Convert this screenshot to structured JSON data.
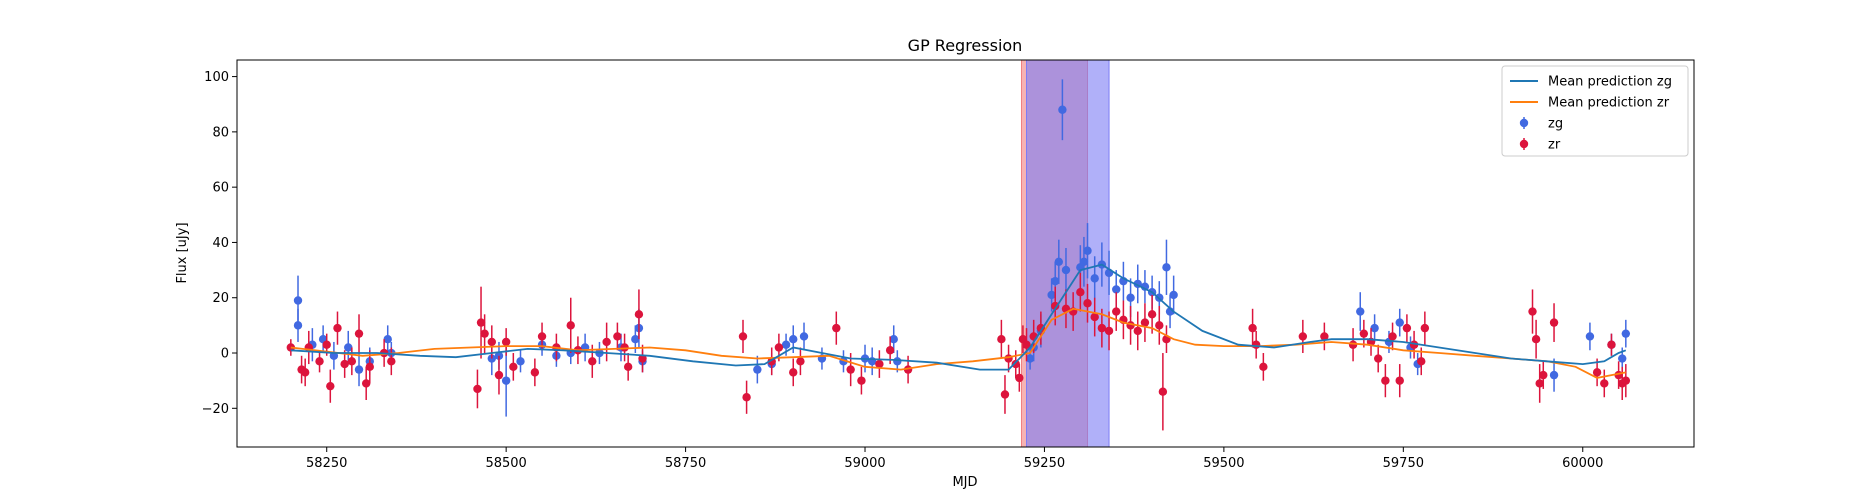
{
  "chart_data": {
    "type": "scatter",
    "title": "GP Regression",
    "xlabel": "MJD",
    "ylabel": "Flux [uJy]",
    "xlim": [
      58125,
      60155
    ],
    "ylim": [
      -34,
      106
    ],
    "xticks": [
      58250,
      58500,
      58750,
      59000,
      59250,
      59500,
      59750,
      60000
    ],
    "yticks": [
      -20,
      0,
      20,
      40,
      60,
      80,
      100
    ],
    "grid": false,
    "legend_position": "top-right",
    "colors": {
      "zg": "#4169e1",
      "zr": "#dc143c",
      "mean_zg": "#1f77b4",
      "mean_zr": "#ff7f0e",
      "span_zr": "#f08080",
      "span_zg": "#7b7bf5"
    },
    "legend": [
      {
        "label": "Mean prediction zg",
        "kind": "line",
        "color_key": "mean_zg"
      },
      {
        "label": "Mean prediction zr",
        "kind": "line",
        "color_key": "mean_zr"
      },
      {
        "label": "zg",
        "kind": "point",
        "color_key": "zg"
      },
      {
        "label": "zr",
        "kind": "point",
        "color_key": "zr"
      }
    ],
    "spans": [
      {
        "band": "zr",
        "x0": 59218,
        "x1": 59310,
        "color_key": "span_zr"
      },
      {
        "band": "zg",
        "x0": 59225,
        "x1": 59340,
        "color_key": "span_zg"
      }
    ],
    "mean_zg": [
      [
        58200,
        1
      ],
      [
        58260,
        0
      ],
      [
        58320,
        0
      ],
      [
        58380,
        -1
      ],
      [
        58430,
        -1.5
      ],
      [
        58480,
        0
      ],
      [
        58530,
        1.5
      ],
      [
        58580,
        1
      ],
      [
        58640,
        0
      ],
      [
        58700,
        -1
      ],
      [
        58760,
        -3
      ],
      [
        58820,
        -4.5
      ],
      [
        58860,
        -4
      ],
      [
        58900,
        2
      ],
      [
        58940,
        0
      ],
      [
        58980,
        -2
      ],
      [
        59040,
        -2.5
      ],
      [
        59100,
        -3.5
      ],
      [
        59160,
        -6
      ],
      [
        59200,
        -6
      ],
      [
        59230,
        2
      ],
      [
        59260,
        14
      ],
      [
        59300,
        30
      ],
      [
        59330,
        32
      ],
      [
        59360,
        27
      ],
      [
        59400,
        22
      ],
      [
        59430,
        15
      ],
      [
        59470,
        8
      ],
      [
        59520,
        3
      ],
      [
        59570,
        2
      ],
      [
        59620,
        4
      ],
      [
        59650,
        5
      ],
      [
        59700,
        5
      ],
      [
        59750,
        4
      ],
      [
        59800,
        2
      ],
      [
        59850,
        0
      ],
      [
        59900,
        -2
      ],
      [
        59950,
        -3
      ],
      [
        60000,
        -4
      ],
      [
        60030,
        -3
      ],
      [
        60050,
        0
      ],
      [
        60060,
        1
      ]
    ],
    "mean_zr": [
      [
        58200,
        2
      ],
      [
        58250,
        0.5
      ],
      [
        58300,
        -1
      ],
      [
        58350,
        0
      ],
      [
        58400,
        1.5
      ],
      [
        58450,
        2
      ],
      [
        58500,
        2.5
      ],
      [
        58550,
        2.5
      ],
      [
        58600,
        1
      ],
      [
        58650,
        1.5
      ],
      [
        58700,
        2
      ],
      [
        58750,
        1
      ],
      [
        58800,
        -1
      ],
      [
        58850,
        -2
      ],
      [
        58900,
        -1.5
      ],
      [
        58950,
        -1
      ],
      [
        59000,
        -5
      ],
      [
        59050,
        -6
      ],
      [
        59100,
        -4
      ],
      [
        59150,
        -3
      ],
      [
        59200,
        -1.5
      ],
      [
        59230,
        0
      ],
      [
        59260,
        12
      ],
      [
        59290,
        16
      ],
      [
        59330,
        14
      ],
      [
        59360,
        11
      ],
      [
        59400,
        9
      ],
      [
        59430,
        5
      ],
      [
        59460,
        3
      ],
      [
        59500,
        2.5
      ],
      [
        59550,
        2.5
      ],
      [
        59600,
        3
      ],
      [
        59650,
        4
      ],
      [
        59700,
        3
      ],
      [
        59750,
        1
      ],
      [
        59800,
        0
      ],
      [
        59850,
        -1
      ],
      [
        59900,
        -2
      ],
      [
        59950,
        -3
      ],
      [
        59990,
        -5
      ],
      [
        60020,
        -9
      ],
      [
        60040,
        -8
      ],
      [
        60060,
        -7
      ]
    ],
    "zg_points": [
      [
        58210,
        19,
        9
      ],
      [
        58210,
        10,
        6
      ],
      [
        58230,
        3,
        6
      ],
      [
        58245,
        5,
        5
      ],
      [
        58260,
        -1,
        5
      ],
      [
        58280,
        2,
        6
      ],
      [
        58295,
        -6,
        6
      ],
      [
        58310,
        -3,
        5
      ],
      [
        58335,
        5,
        5
      ],
      [
        58340,
        0,
        4
      ],
      [
        58480,
        -2,
        6
      ],
      [
        58490,
        -1,
        5
      ],
      [
        58500,
        -10,
        13
      ],
      [
        58520,
        -3,
        4
      ],
      [
        58550,
        3,
        4
      ],
      [
        58570,
        -1,
        4
      ],
      [
        58590,
        0,
        4
      ],
      [
        58610,
        2,
        5
      ],
      [
        58630,
        0,
        4
      ],
      [
        58660,
        2,
        5
      ],
      [
        58680,
        5,
        5
      ],
      [
        58685,
        9,
        7
      ],
      [
        58690,
        -3,
        4
      ],
      [
        58850,
        -6,
        5
      ],
      [
        58870,
        -4,
        4
      ],
      [
        58890,
        3,
        4
      ],
      [
        58900,
        5,
        5
      ],
      [
        58915,
        6,
        5
      ],
      [
        58940,
        -2,
        4
      ],
      [
        58970,
        -3,
        4
      ],
      [
        59000,
        -2,
        5
      ],
      [
        59010,
        -3,
        5
      ],
      [
        59040,
        5,
        5
      ],
      [
        59045,
        -3,
        4
      ],
      [
        59230,
        -2,
        4
      ],
      [
        59235,
        2,
        5
      ],
      [
        59245,
        8,
        6
      ],
      [
        59260,
        21,
        6
      ],
      [
        59265,
        26,
        7
      ],
      [
        59270,
        33,
        8
      ],
      [
        59275,
        88,
        11
      ],
      [
        59280,
        30,
        8
      ],
      [
        59300,
        31,
        8
      ],
      [
        59305,
        33,
        9
      ],
      [
        59310,
        37,
        10
      ],
      [
        59320,
        27,
        8
      ],
      [
        59330,
        32,
        8
      ],
      [
        59340,
        29,
        8
      ],
      [
        59350,
        23,
        7
      ],
      [
        59360,
        26,
        7
      ],
      [
        59370,
        20,
        7
      ],
      [
        59380,
        25,
        7
      ],
      [
        59390,
        24,
        6
      ],
      [
        59400,
        22,
        6
      ],
      [
        59410,
        20,
        6
      ],
      [
        59420,
        31,
        10
      ],
      [
        59425,
        15,
        6
      ],
      [
        59430,
        21,
        7
      ],
      [
        59690,
        15,
        7
      ],
      [
        59710,
        9,
        5
      ],
      [
        59730,
        4,
        4
      ],
      [
        59745,
        11,
        5
      ],
      [
        59760,
        2,
        4
      ],
      [
        59770,
        -4,
        4
      ],
      [
        59960,
        -8,
        6
      ],
      [
        60010,
        6,
        5
      ],
      [
        60040,
        3,
        4
      ],
      [
        60055,
        -2,
        4
      ],
      [
        60060,
        7,
        5
      ]
    ],
    "zr_points": [
      [
        58200,
        2,
        3
      ],
      [
        58215,
        -6,
        5
      ],
      [
        58220,
        -7,
        5
      ],
      [
        58225,
        2,
        6
      ],
      [
        58240,
        -3,
        4
      ],
      [
        58250,
        3,
        4
      ],
      [
        58255,
        -12,
        6
      ],
      [
        58265,
        9,
        6
      ],
      [
        58275,
        -4,
        5
      ],
      [
        58285,
        -3,
        5
      ],
      [
        58295,
        7,
        7
      ],
      [
        58305,
        -11,
        6
      ],
      [
        58310,
        -5,
        6
      ],
      [
        58330,
        0,
        5
      ],
      [
        58340,
        -3,
        5
      ],
      [
        58460,
        -13,
        7
      ],
      [
        58465,
        11,
        13
      ],
      [
        58470,
        7,
        7
      ],
      [
        58480,
        4,
        6
      ],
      [
        58490,
        -8,
        7
      ],
      [
        58500,
        4,
        5
      ],
      [
        58510,
        -5,
        5
      ],
      [
        58540,
        -7,
        5
      ],
      [
        58550,
        6,
        5
      ],
      [
        58570,
        2,
        5
      ],
      [
        58590,
        10,
        10
      ],
      [
        58600,
        1,
        5
      ],
      [
        58620,
        -3,
        6
      ],
      [
        58640,
        4,
        7
      ],
      [
        58655,
        6,
        5
      ],
      [
        58665,
        2,
        5
      ],
      [
        58670,
        -5,
        5
      ],
      [
        58685,
        14,
        9
      ],
      [
        58690,
        -2,
        5
      ],
      [
        58830,
        6,
        6
      ],
      [
        58835,
        -16,
        6
      ],
      [
        58870,
        -3,
        5
      ],
      [
        58880,
        2,
        5
      ],
      [
        58900,
        -7,
        5
      ],
      [
        58910,
        -3,
        5
      ],
      [
        58960,
        9,
        6
      ],
      [
        58980,
        -6,
        6
      ],
      [
        58995,
        -10,
        5
      ],
      [
        59020,
        -4,
        5
      ],
      [
        59035,
        1,
        5
      ],
      [
        59060,
        -6,
        5
      ],
      [
        59190,
        5,
        7
      ],
      [
        59195,
        -15,
        7
      ],
      [
        59200,
        -2,
        5
      ],
      [
        59210,
        -4,
        5
      ],
      [
        59215,
        -9,
        5
      ],
      [
        59220,
        5,
        5
      ],
      [
        59225,
        3,
        6
      ],
      [
        59235,
        6,
        6
      ],
      [
        59245,
        9,
        6
      ],
      [
        59265,
        17,
        7
      ],
      [
        59280,
        16,
        7
      ],
      [
        59290,
        15,
        7
      ],
      [
        59300,
        22,
        7
      ],
      [
        59310,
        18,
        7
      ],
      [
        59320,
        13,
        7
      ],
      [
        59330,
        9,
        7
      ],
      [
        59340,
        8,
        7
      ],
      [
        59350,
        15,
        7
      ],
      [
        59360,
        12,
        7
      ],
      [
        59370,
        10,
        7
      ],
      [
        59380,
        8,
        7
      ],
      [
        59390,
        11,
        7
      ],
      [
        59400,
        14,
        7
      ],
      [
        59410,
        10,
        7
      ],
      [
        59415,
        -14,
        14
      ],
      [
        59420,
        5,
        5
      ],
      [
        59540,
        9,
        7
      ],
      [
        59545,
        3,
        5
      ],
      [
        59555,
        -5,
        5
      ],
      [
        59610,
        6,
        6
      ],
      [
        59640,
        6,
        5
      ],
      [
        59680,
        3,
        6
      ],
      [
        59695,
        7,
        5
      ],
      [
        59705,
        4,
        5
      ],
      [
        59715,
        -2,
        5
      ],
      [
        59725,
        -10,
        6
      ],
      [
        59735,
        6,
        5
      ],
      [
        59745,
        -10,
        6
      ],
      [
        59755,
        9,
        5
      ],
      [
        59765,
        3,
        5
      ],
      [
        59775,
        -3,
        5
      ],
      [
        59780,
        9,
        6
      ],
      [
        59930,
        15,
        8
      ],
      [
        59935,
        5,
        7
      ],
      [
        59940,
        -11,
        7
      ],
      [
        59945,
        -8,
        5
      ],
      [
        59960,
        11,
        7
      ],
      [
        60020,
        -7,
        5
      ],
      [
        60030,
        -11,
        5
      ],
      [
        60040,
        3,
        4
      ],
      [
        60050,
        -8,
        5
      ],
      [
        60055,
        -11,
        6
      ],
      [
        60060,
        -10,
        6
      ]
    ]
  }
}
